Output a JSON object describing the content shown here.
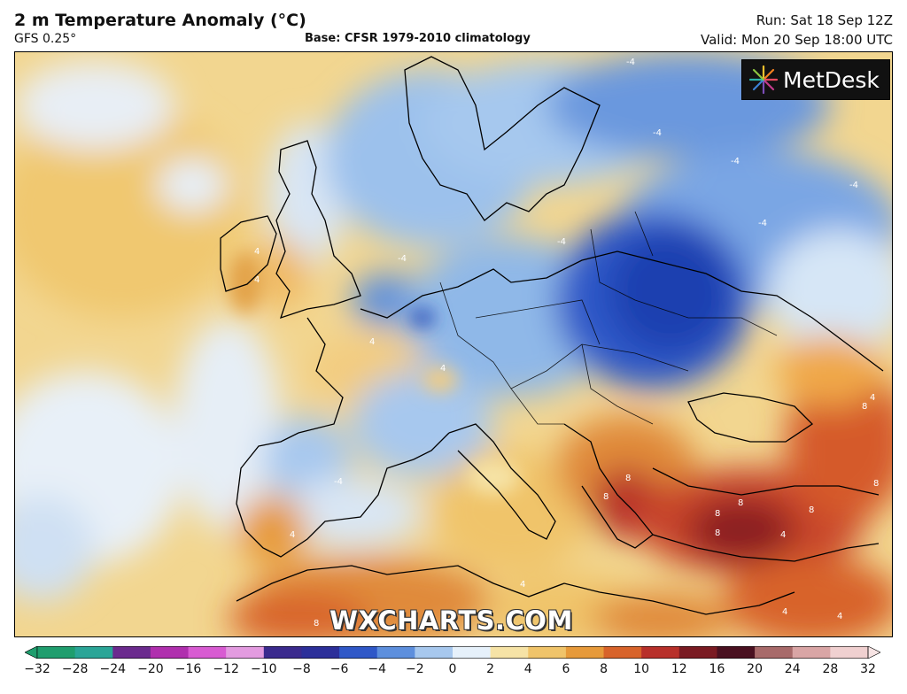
{
  "header": {
    "title": "2 m Temperature Anomaly (°C)",
    "model": "GFS 0.25°",
    "base": "Base: CFSR 1979-2010 climatology",
    "run": "Run: Sat 18 Sep 12Z",
    "valid": "Valid: Mon 20 Sep 18:00 UTC"
  },
  "logo": {
    "text": "MetDesk",
    "icon": "metdesk-burst-icon"
  },
  "watermark": "WXCHARTS.COM",
  "colorbar": {
    "ticks": [
      "−32",
      "−28",
      "−24",
      "−20",
      "−16",
      "−12",
      "−10",
      "−8",
      "−6",
      "−4",
      "−2",
      "0",
      "2",
      "4",
      "6",
      "8",
      "10",
      "12",
      "16",
      "20",
      "24",
      "28",
      "32"
    ],
    "colors": [
      "#1f9e6e",
      "#2aa597",
      "#6b2a8e",
      "#b02fae",
      "#d85bd2",
      "#e39be0",
      "#3b2a8e",
      "#2c2f9a",
      "#2f58c8",
      "#5d8fdd",
      "#a7c8ee",
      "#e6f1fb",
      "#f6e3a6",
      "#f0c46a",
      "#e79a3a",
      "#d8632a",
      "#b8302a",
      "#7a1a22",
      "#4a1020",
      "#a86a6a",
      "#d9a5a5",
      "#f0d0d0"
    ]
  },
  "map_labels": {
    "neg": [
      "-4",
      "-4",
      "-4",
      "-4",
      "-4",
      "-4",
      "-4",
      "-4"
    ],
    "pos": [
      "4",
      "4",
      "4",
      "4",
      "4",
      "4",
      "4",
      "4",
      "8",
      "8",
      "8",
      "8",
      "8",
      "8",
      "8",
      "8",
      "8",
      "4",
      "4"
    ]
  }
}
